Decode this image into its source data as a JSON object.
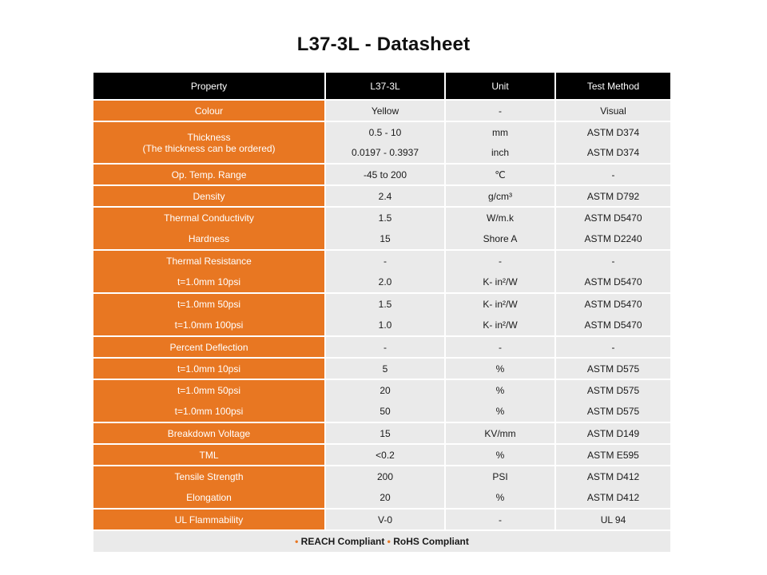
{
  "title": "L37-3L - Datasheet",
  "table": {
    "headers": [
      "Property",
      "L37-3L",
      "Unit",
      "Test Method"
    ],
    "rows": {
      "colour": {
        "property": "Colour",
        "value": "Yellow",
        "unit": "-",
        "method": "Visual"
      },
      "thickness": {
        "property": "Thickness",
        "property_note": "(The thickness can be ordered)",
        "value_1": "0.5 - 10",
        "unit_1": "mm",
        "method_1": "ASTM D374",
        "value_2": "0.0197 - 0.3937",
        "unit_2": "inch",
        "method_2": "ASTM D374"
      },
      "op_temp": {
        "property": "Op. Temp. Range",
        "value": "-45 to 200",
        "unit": "℃",
        "method": "-"
      },
      "density": {
        "property": "Density",
        "value": "2.4",
        "unit": "g/cm³",
        "method": "ASTM D792"
      },
      "thermal_conductivity": {
        "property": "Thermal Conductivity",
        "value": "1.5",
        "unit": "W/m.k",
        "method": "ASTM D5470"
      },
      "hardness": {
        "property": "Hardness",
        "value": "15",
        "unit": "Shore A",
        "method": "ASTM D2240"
      },
      "thermal_resistance": {
        "property": "Thermal Resistance",
        "value": "-",
        "unit": "-",
        "method": "-"
      },
      "tr_10psi": {
        "property": "t=1.0mm 10psi",
        "value": "2.0",
        "unit": "K- in²/W",
        "method": "ASTM D5470"
      },
      "tr_50psi": {
        "property": "t=1.0mm 50psi",
        "value": "1.5",
        "unit": "K- in²/W",
        "method": "ASTM D5470"
      },
      "tr_100psi": {
        "property": "t=1.0mm 100psi",
        "value": "1.0",
        "unit": "K- in²/W",
        "method": "ASTM D5470"
      },
      "percent_deflection": {
        "property": "Percent Deflection",
        "value": "-",
        "unit": "-",
        "method": "-"
      },
      "pd_10psi": {
        "property": "t=1.0mm 10psi",
        "value": "5",
        "unit": "%",
        "method": "ASTM D575"
      },
      "pd_50psi": {
        "property": "t=1.0mm 50psi",
        "value": "20",
        "unit": "%",
        "method": "ASTM D575"
      },
      "pd_100psi": {
        "property": "t=1.0mm 100psi",
        "value": "50",
        "unit": "%",
        "method": "ASTM D575"
      },
      "breakdown_voltage": {
        "property": "Breakdown Voltage",
        "value": "15",
        "unit": "KV/mm",
        "method": "ASTM D149"
      },
      "tml": {
        "property": "TML",
        "value": "<0.2",
        "unit": "%",
        "method": "ASTM E595"
      },
      "tensile_strength": {
        "property": "Tensile Strength",
        "value": "200",
        "unit": "PSI",
        "method": "ASTM D412"
      },
      "elongation": {
        "property": "Elongation",
        "value": "20",
        "unit": "%",
        "method": "ASTM D412"
      },
      "ul_flammability": {
        "property": "UL Flammability",
        "value": "V-0",
        "unit": "-",
        "method": "UL 94"
      }
    },
    "footer": {
      "bullet": "•",
      "reach": "REACH Compliant",
      "rohs": "RoHS Compliant"
    }
  },
  "colors": {
    "header_bg": "#000000",
    "property_bg": "#e87722",
    "cell_bg": "#eaeaea",
    "accent": "#e87722"
  }
}
